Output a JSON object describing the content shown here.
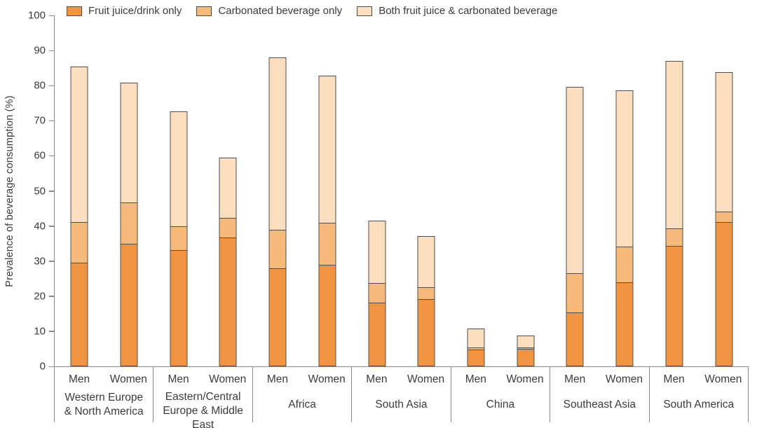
{
  "chart_data": {
    "type": "bar",
    "stacked": true,
    "orientation": "vertical",
    "title": "",
    "ylabel": "Prevalence of beverage consumption (%)",
    "xlabel": "",
    "ylim": [
      0,
      100
    ],
    "yticks": [
      0,
      10,
      20,
      30,
      40,
      50,
      60,
      70,
      80,
      90,
      100
    ],
    "grid": false,
    "legend_position": "top-left-inside",
    "series_names": [
      "Fruit juice/drink only",
      "Carbonated beverage only",
      "Both fruit juice & carbonated beverage"
    ],
    "series_colors": [
      "#EF9440",
      "#F5B97A",
      "#FADEBD"
    ],
    "bar_outline_color": "#4f4f4f",
    "bar_pair_labels": [
      "Men",
      "Women"
    ],
    "groups": [
      {
        "region": "Western Europe & North America",
        "region_lines": [
          "Western Europe",
          "& North America"
        ],
        "bars": [
          {
            "label": "Men",
            "segments": [
              29.5,
              11.9,
              44.4
            ],
            "total": 85.8
          },
          {
            "label": "Women",
            "segments": [
              35.0,
              12.0,
              34.3
            ],
            "total": 81.3
          }
        ]
      },
      {
        "region": "Eastern/Central Europe & Middle East",
        "region_lines": [
          "Eastern/Central",
          "Europe & Middle East"
        ],
        "bars": [
          {
            "label": "Men",
            "segments": [
              33.2,
              6.9,
              32.9
            ],
            "total": 73.0
          },
          {
            "label": "Women",
            "segments": [
              36.8,
              5.8,
              17.2
            ],
            "total": 59.8
          }
        ]
      },
      {
        "region": "Africa",
        "region_lines": [
          "Africa"
        ],
        "bars": [
          {
            "label": "Men",
            "segments": [
              27.9,
              11.3,
              49.3
            ],
            "total": 88.5
          },
          {
            "label": "Women",
            "segments": [
              29.0,
              12.1,
              42.2
            ],
            "total": 83.3
          }
        ]
      },
      {
        "region": "South Asia",
        "region_lines": [
          "South Asia"
        ],
        "bars": [
          {
            "label": "Men",
            "segments": [
              18.1,
              5.9,
              17.9
            ],
            "total": 41.9
          },
          {
            "label": "Women",
            "segments": [
              19.2,
              3.6,
              14.7
            ],
            "total": 37.5
          }
        ]
      },
      {
        "region": "China",
        "region_lines": [
          "China"
        ],
        "bars": [
          {
            "label": "Men",
            "segments": [
              4.7,
              0.9,
              5.6
            ],
            "total": 11.2
          },
          {
            "label": "Women",
            "segments": [
              5.0,
              0.6,
              3.5
            ],
            "total": 9.1
          }
        ]
      },
      {
        "region": "Southeast Asia",
        "region_lines": [
          "Southeast Asia"
        ],
        "bars": [
          {
            "label": "Men",
            "segments": [
              15.4,
              11.3,
              53.3
            ],
            "total": 80.0
          },
          {
            "label": "Women",
            "segments": [
              23.9,
              10.5,
              44.7
            ],
            "total": 79.1
          }
        ]
      },
      {
        "region": "South America",
        "region_lines": [
          "South America"
        ],
        "bars": [
          {
            "label": "Men",
            "segments": [
              34.4,
              5.1,
              48.0
            ],
            "total": 87.5
          },
          {
            "label": "Women",
            "segments": [
              41.2,
              3.2,
              39.8
            ],
            "total": 84.2
          }
        ]
      }
    ]
  }
}
